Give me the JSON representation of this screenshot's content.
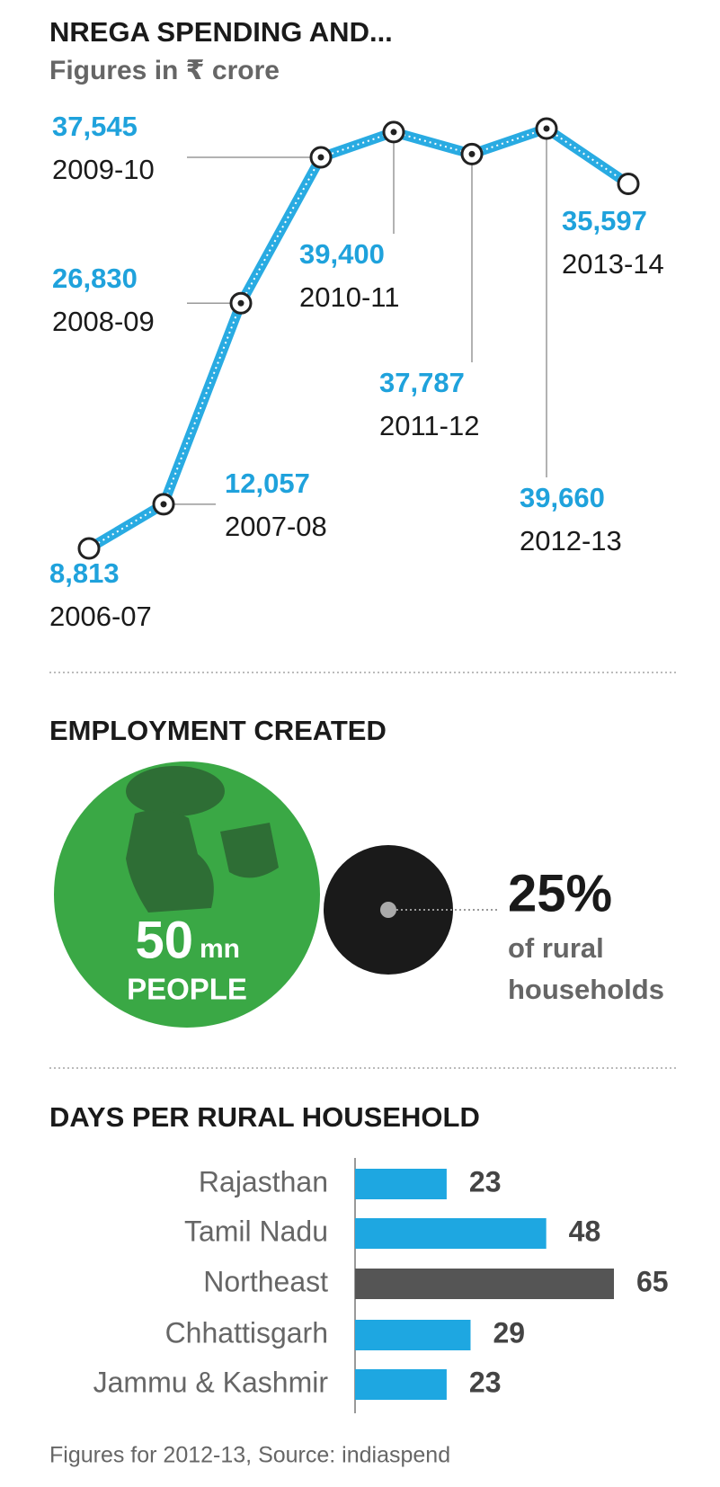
{
  "chart_data": [
    {
      "type": "line",
      "title": "NREGA SPENDING AND...",
      "subtitle": "Figures in ₹ crore",
      "categories": [
        "2006-07",
        "2007-08",
        "2008-09",
        "2009-10",
        "2010-11",
        "2011-12",
        "2012-13",
        "2013-14"
      ],
      "series": [
        {
          "color": "#29abe2",
          "values": [
            8813,
            12057,
            26830,
            37545,
            39400,
            37787,
            39660,
            35597
          ],
          "value_labels": [
            "8,813",
            "12,057",
            "26,830",
            "37,545",
            "39,400",
            "37,787",
            "39,660",
            "35,597"
          ]
        }
      ]
    },
    {
      "type": "bar",
      "title": "DAYS PER RURAL HOUSEHOLD",
      "categories": [
        "Rajasthan",
        "Tamil Nadu",
        "Northeast",
        "Chhattisgarh",
        "Jammu & Kashmir"
      ],
      "values": [
        23,
        48,
        65,
        29,
        23
      ],
      "colors": [
        "#1ea7e1",
        "#1ea7e1",
        "#555555",
        "#1ea7e1",
        "#1ea7e1"
      ],
      "note": "Figures for 2012-13, Source: indiaspend"
    }
  ],
  "employment": {
    "title": "EMPLOYMENT CREATED",
    "people_number": "50",
    "people_unit": "mn",
    "people_label": "PEOPLE",
    "share": "25%",
    "share_caption_1": "of rural",
    "share_caption_2": "households"
  }
}
